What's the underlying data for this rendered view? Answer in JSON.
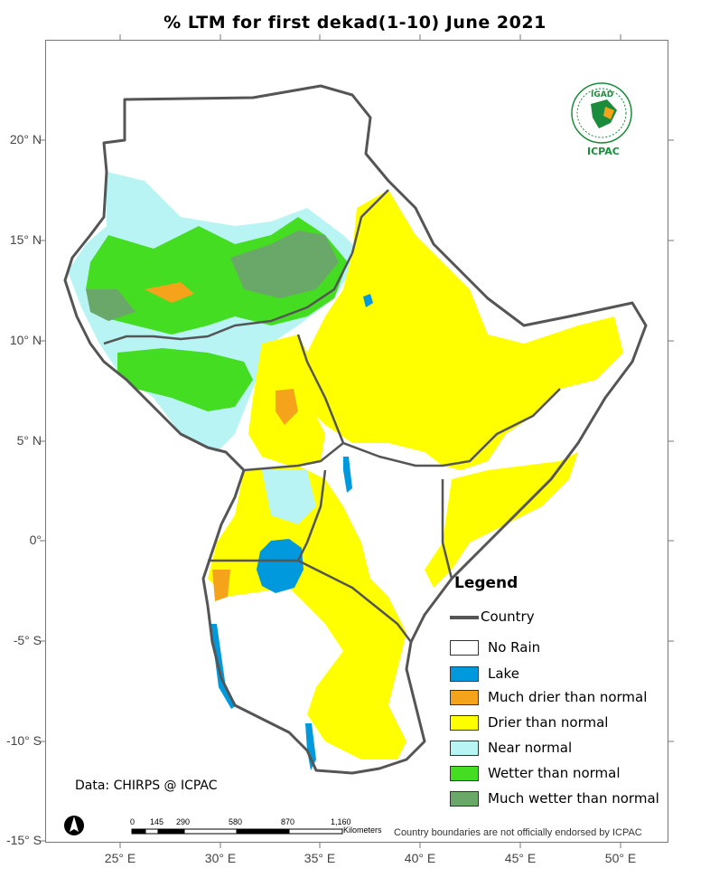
{
  "title": "% LTM for first dekad(1-10) June 2021",
  "axes": {
    "latitude_labels": [
      "20° N",
      "15° N",
      "10° N",
      "5° N",
      "0°",
      "-5° S",
      "-10° S",
      "-15° S"
    ],
    "longitude_labels": [
      "25° E",
      "30° E",
      "35° E",
      "40° E",
      "45° E",
      "50° E"
    ]
  },
  "legend": {
    "title": "Legend",
    "country_label": "Country",
    "items": [
      {
        "label": "No Rain",
        "color": "#ffffff"
      },
      {
        "label": "Lake",
        "color": "#0099dd"
      },
      {
        "label": "Much drier than normal",
        "color": "#f5a31a"
      },
      {
        "label": "Drier than normal",
        "color": "#ffff00"
      },
      {
        "label": "Near normal",
        "color": "#b8f4f4"
      },
      {
        "label": "Wetter than normal",
        "color": "#44dd22"
      },
      {
        "label": "Much wetter than normal",
        "color": "#6aa86a"
      }
    ]
  },
  "credit": "Data: CHIRPS @ ICPAC",
  "disclaimer": "Country boundaries are not officially endorsed by ICPAC",
  "scale_bar": {
    "ticks": [
      "0",
      "145",
      "290",
      "580",
      "870",
      "1,160"
    ],
    "unit": "Kilometers"
  },
  "logo": {
    "top_text": "IGAD",
    "name": "ICPAC"
  },
  "colors": {
    "border": "#555555",
    "north_arrow": "#000000"
  }
}
